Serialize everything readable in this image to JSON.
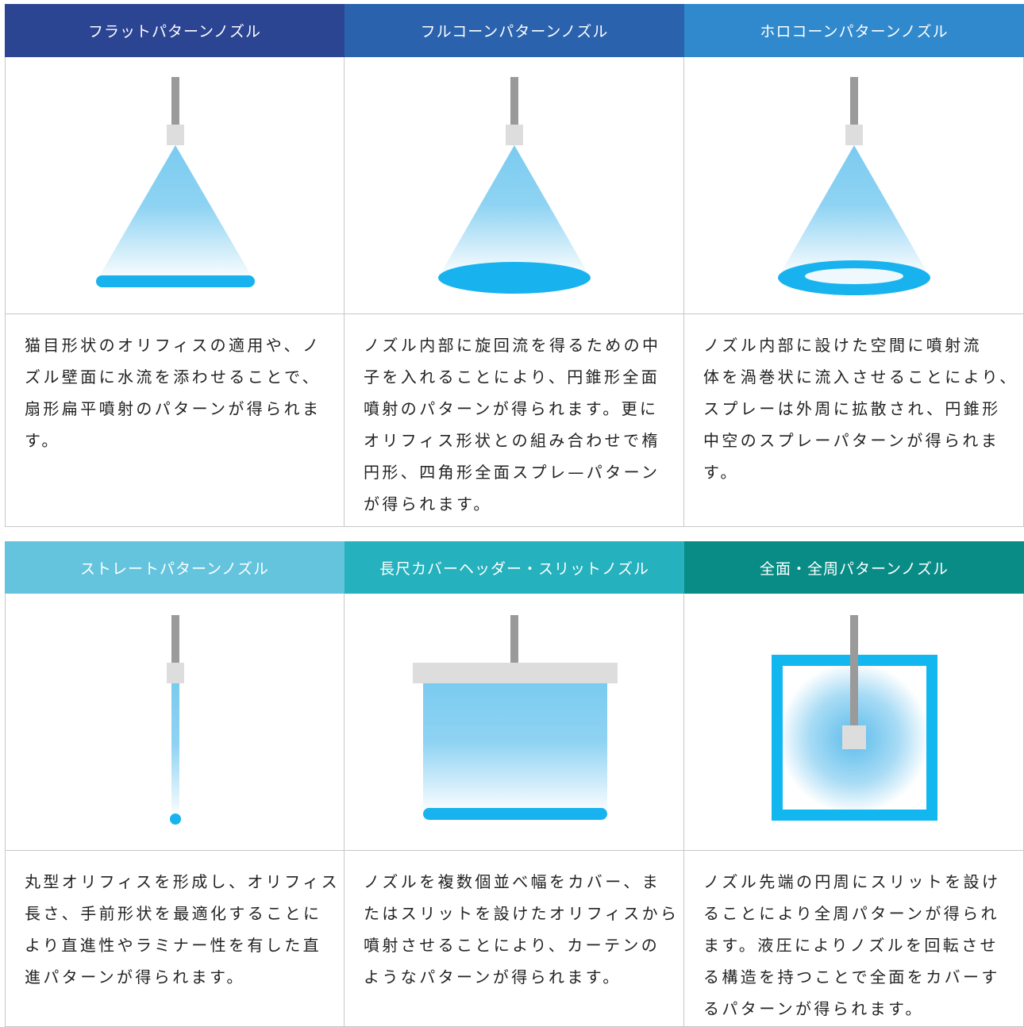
{
  "tables": [
    {
      "columns": [
        {
          "header": "フラットパターンノズル",
          "description": [
            "猫目形状のオリフィスの適用や、ノ",
            "ズル壁面に水流を添わせることで、",
            "扇形扁平噴射のパターンが得られま",
            "す。"
          ]
        },
        {
          "header": "フルコーンパターンノズル",
          "description": [
            "ノズル内部に旋回流を得るための中",
            "子を入れることにより、円錐形全面",
            "噴射のパターンが得られます。更に",
            "オリフィス形状との組み合わせで楕",
            "円形、四角形全面スプレ—パターン",
            "が得られます。"
          ]
        },
        {
          "header": "ホロコーンパターンノズル",
          "description": [
            "ノズル内部に設けた空間に噴射流",
            "体を渦巻状に流入させることにより、",
            "スプレーは外周に拡散され、円錐形",
            "中空のスプレーパターンが得られま",
            "す。"
          ]
        }
      ]
    },
    {
      "columns": [
        {
          "header": "ストレートパターンノズル",
          "description": [
            "丸型オリフィスを形成し、オリフィス",
            "長さ、手前形状を最適化することに",
            "より直進性やラミナー性を有した直",
            "進パターンが得られます。"
          ]
        },
        {
          "header": "長尺カバーヘッダー・スリットノズル",
          "description": [
            "ノズルを複数個並べ幅をカバー、ま",
            "たはスリットを設けたオリフィスから",
            "噴射させることにより、カーテンの",
            "ようなパターンが得られます。"
          ]
        },
        {
          "header": "全面・全周パターンノズル",
          "description": [
            "ノズル先端の円周にスリットを設け",
            "ることにより全周パターンが得られ",
            "ます。液圧によりノズルを回転させ",
            "る構造を持つことで全面をカバーす",
            "るパターンが得られます。"
          ]
        }
      ]
    }
  ]
}
